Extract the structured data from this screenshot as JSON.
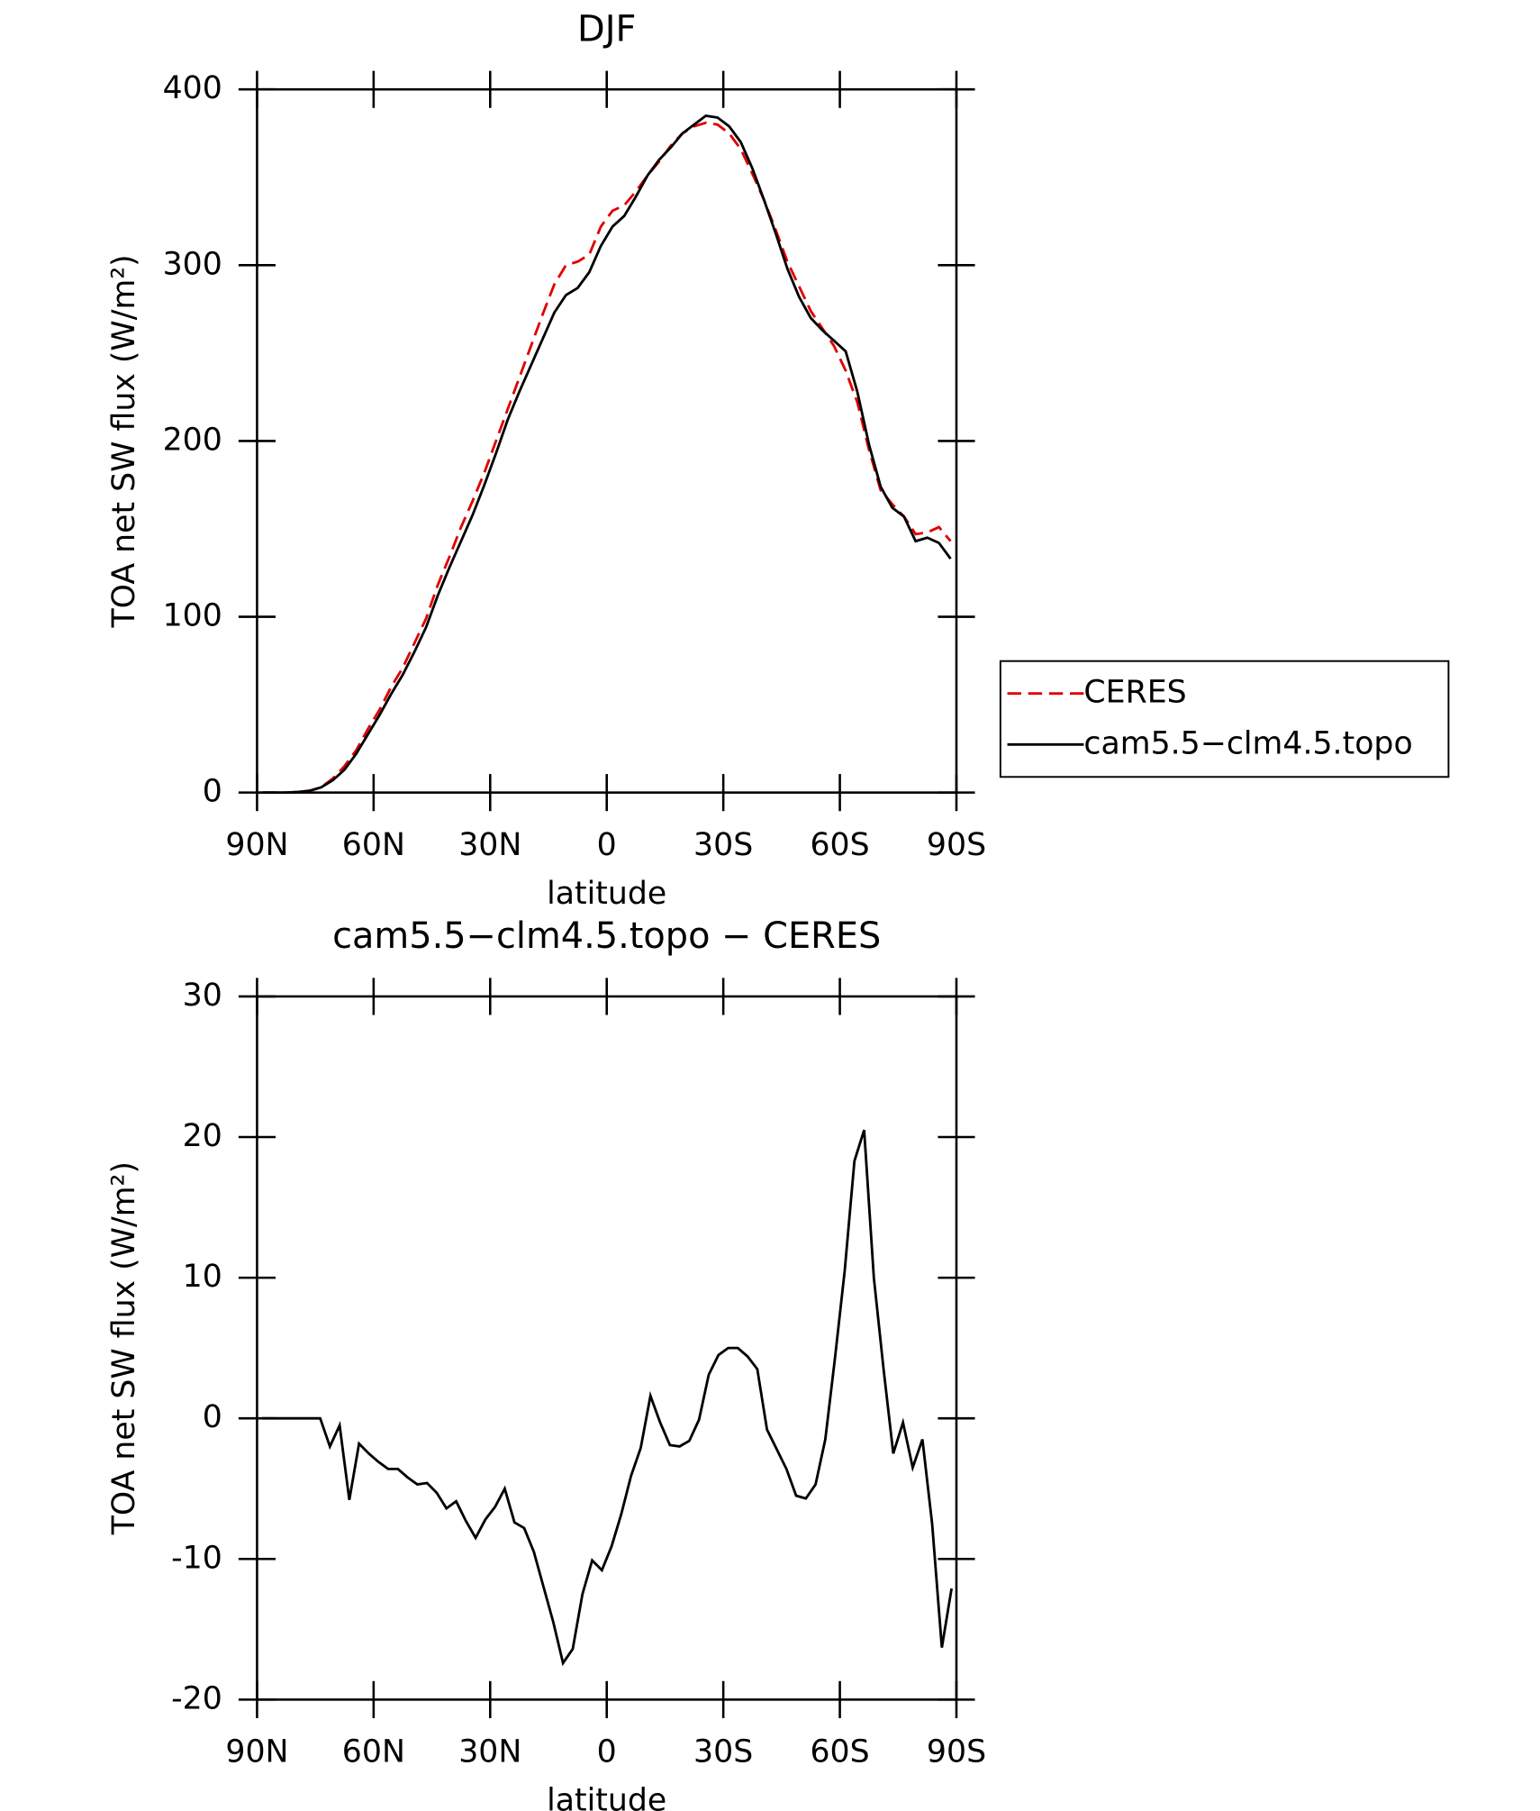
{
  "chart_data": [
    {
      "type": "line",
      "title": "DJF",
      "xlabel": "latitude",
      "ylabel": "TOA net SW flux (W/m²)",
      "x": [
        88.5,
        85.5,
        82.5,
        79.5,
        76.5,
        73.5,
        70.5,
        67.5,
        64.5,
        61.5,
        58.5,
        55.5,
        52.5,
        49.5,
        46.5,
        43.5,
        40.5,
        37.5,
        34.5,
        31.5,
        28.5,
        25.5,
        22.5,
        19.5,
        16.5,
        13.5,
        10.5,
        7.5,
        4.5,
        1.5,
        -1.5,
        -4.5,
        -7.5,
        -10.5,
        -13.5,
        -16.5,
        -19.5,
        -22.5,
        -25.5,
        -28.5,
        -31.5,
        -34.5,
        -37.5,
        -40.5,
        -43.5,
        -46.5,
        -49.5,
        -52.5,
        -55.5,
        -58.5,
        -61.5,
        -64.5,
        -67.5,
        -70.5,
        -73.5,
        -76.5,
        -79.5,
        -82.5,
        -85.5,
        -88.5
      ],
      "series": [
        {
          "name": "CERES",
          "color": "#e00000",
          "dashed": true,
          "values": [
            0,
            0,
            0,
            0.3,
            1,
            3,
            8,
            15,
            24,
            36,
            47,
            60,
            71,
            85,
            99,
            118,
            134,
            151,
            166,
            182,
            200,
            218,
            236,
            254,
            272,
            289,
            300,
            302,
            306,
            322,
            331,
            334,
            342,
            351,
            359,
            368,
            375,
            379,
            381,
            380,
            375,
            366,
            352,
            337,
            320,
            302,
            288,
            274,
            264,
            254,
            240,
            222,
            195,
            172,
            164,
            157,
            147,
            148,
            151,
            143
          ]
        },
        {
          "name": "cam5.5−clm4.5.topo",
          "color": "#000000",
          "dashed": false,
          "values": [
            0,
            0,
            0,
            0.3,
            1,
            3,
            7,
            13,
            22,
            33,
            44,
            56,
            67,
            80,
            94,
            112,
            128,
            143,
            158,
            175,
            193,
            212,
            228,
            243,
            258,
            273,
            283,
            287,
            296,
            311,
            322,
            328,
            339,
            351,
            360,
            367,
            375,
            380,
            385,
            384,
            379,
            370,
            355,
            337,
            318,
            298,
            282,
            270,
            263,
            257,
            251,
            228,
            198,
            174,
            162,
            157,
            143,
            145,
            142,
            133
          ]
        }
      ],
      "xlim": [
        90,
        -90
      ],
      "xticks": [
        {
          "value": 90,
          "label": "90N"
        },
        {
          "value": 60,
          "label": "60N"
        },
        {
          "value": 30,
          "label": "30N"
        },
        0,
        {
          "value": -30,
          "label": "30S"
        },
        {
          "value": -60,
          "label": "60S"
        },
        {
          "value": -90,
          "label": "90S"
        }
      ],
      "ylim": [
        0,
        400
      ],
      "yticks": [
        0,
        100,
        200,
        300,
        400
      ],
      "legend": "right"
    },
    {
      "type": "line",
      "title": "cam5.5−clm4.5.topo − CERES",
      "xlabel": "latitude",
      "ylabel": "TOA net SW flux (W/m²)",
      "x": [
        88.75,
        86.25,
        83.75,
        81.25,
        78.75,
        76.25,
        73.75,
        71.25,
        68.75,
        66.25,
        63.75,
        61.25,
        58.75,
        56.25,
        53.75,
        51.25,
        48.75,
        46.25,
        43.75,
        41.25,
        38.75,
        36.25,
        33.75,
        31.25,
        28.75,
        26.25,
        23.75,
        21.25,
        18.75,
        16.25,
        13.75,
        11.25,
        8.75,
        6.25,
        3.75,
        1.25,
        -1.25,
        -3.75,
        -6.25,
        -8.75,
        -11.25,
        -13.75,
        -16.25,
        -18.75,
        -21.25,
        -23.75,
        -26.25,
        -28.75,
        -31.25,
        -33.75,
        -36.25,
        -38.75,
        -41.25,
        -43.75,
        -46.25,
        -48.75,
        -51.25,
        -53.75,
        -56.25,
        -58.75,
        -61.25,
        -63.75,
        -66.25,
        -68.75,
        -71.25,
        -73.75,
        -76.25,
        -78.75,
        -81.25,
        -83.75,
        -86.25,
        -88.75
      ],
      "values": [
        0,
        0,
        0,
        0,
        0,
        0,
        0,
        -2,
        -0.5,
        -5.8,
        -1.8,
        -2.5,
        -3.1,
        -3.6,
        -3.6,
        -4.2,
        -4.7,
        -4.6,
        -5.3,
        -6.4,
        -5.9,
        -7.3,
        -8.5,
        -7.2,
        -6.3,
        -5,
        -7.4,
        -7.8,
        -9.5,
        -12,
        -14.5,
        -17.4,
        -16.4,
        -12.5,
        -10.1,
        -10.8,
        -9.1,
        -6.8,
        -4.1,
        -2.1,
        1.6,
        -0.3,
        -1.9,
        -2,
        -1.6,
        -0.1,
        3.1,
        4.5,
        5,
        5,
        4.4,
        3.5,
        -0.8,
        -2.2,
        -3.6,
        -5.5,
        -5.7,
        -4.7,
        -1.5,
        4.3,
        10.5,
        18.3,
        20.5,
        10,
        3.5,
        -2.5,
        -0.3,
        -3.5,
        -1.5,
        -7.5,
        -16.3,
        -12.1
      ],
      "color": "#000000",
      "xlim": [
        90,
        -90
      ],
      "xticks": [
        {
          "value": 90,
          "label": "90N"
        },
        {
          "value": 60,
          "label": "60N"
        },
        {
          "value": 30,
          "label": "30N"
        },
        0,
        {
          "value": -30,
          "label": "30S"
        },
        {
          "value": -60,
          "label": "60S"
        },
        {
          "value": -90,
          "label": "90S"
        }
      ],
      "ylim": [
        -20,
        30
      ],
      "yticks": [
        -20,
        -10,
        0,
        10,
        20,
        30
      ]
    }
  ]
}
